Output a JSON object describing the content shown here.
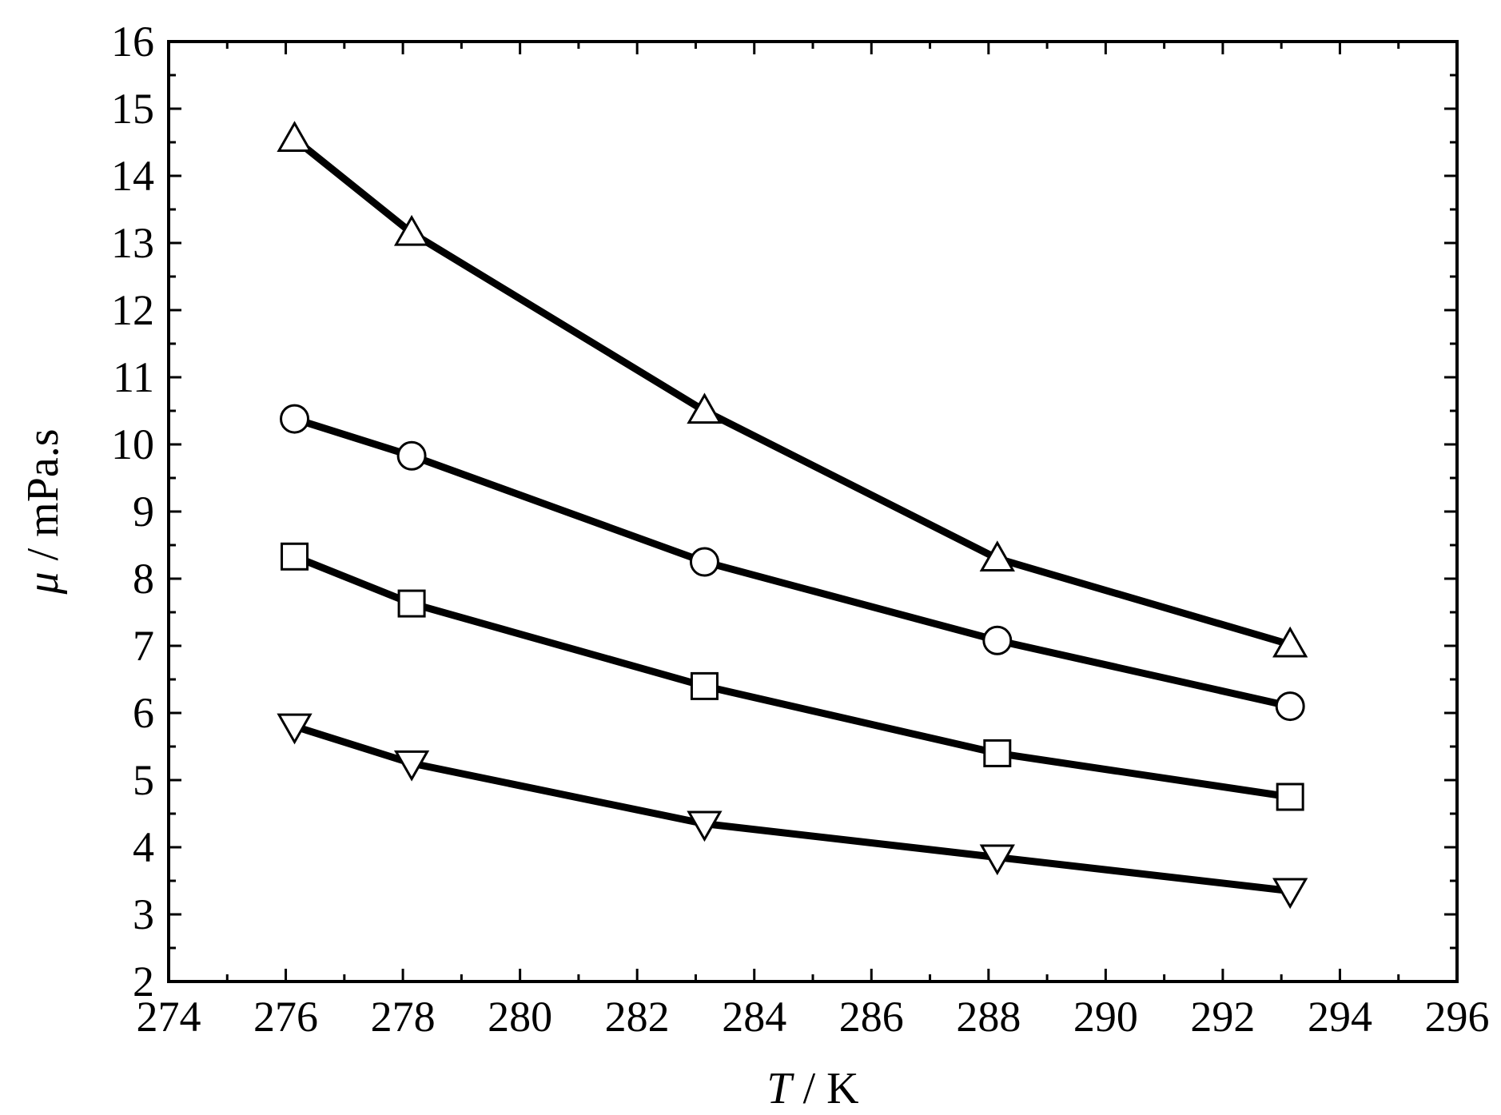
{
  "chart_data": {
    "type": "line",
    "title": "",
    "xlabel": "",
    "ylabel": "",
    "xlabel_parts": {
      "italic": "T",
      "rest": " / K"
    },
    "ylabel_parts": {
      "italic": "μ",
      "rest": " / mPa.s"
    },
    "xlim": [
      274,
      296
    ],
    "ylim": [
      2,
      16
    ],
    "xticks": [
      "274",
      "276",
      "278",
      "280",
      "282",
      "284",
      "286",
      "288",
      "290",
      "292",
      "294",
      "296"
    ],
    "yticks": [
      "2",
      "3",
      "4",
      "5",
      "6",
      "7",
      "8",
      "9",
      "10",
      "11",
      "12",
      "13",
      "14",
      "15",
      "16"
    ],
    "grid": false,
    "legend": "none",
    "x": [
      276.15,
      278.15,
      283.15,
      288.15,
      293.15
    ],
    "series": [
      {
        "marker": "triangle-up",
        "values": [
          14.55,
          13.15,
          10.5,
          8.3,
          7.02
        ]
      },
      {
        "marker": "circle",
        "values": [
          10.38,
          9.83,
          8.25,
          7.08,
          6.1
        ]
      },
      {
        "marker": "square",
        "values": [
          8.33,
          7.63,
          6.4,
          5.4,
          4.75
        ]
      },
      {
        "marker": "triangle-down",
        "values": [
          5.8,
          5.25,
          4.35,
          3.85,
          3.35
        ]
      }
    ],
    "colors": {
      "line": "#000000",
      "marker_fill": "#ffffff",
      "background": "#ffffff"
    }
  }
}
